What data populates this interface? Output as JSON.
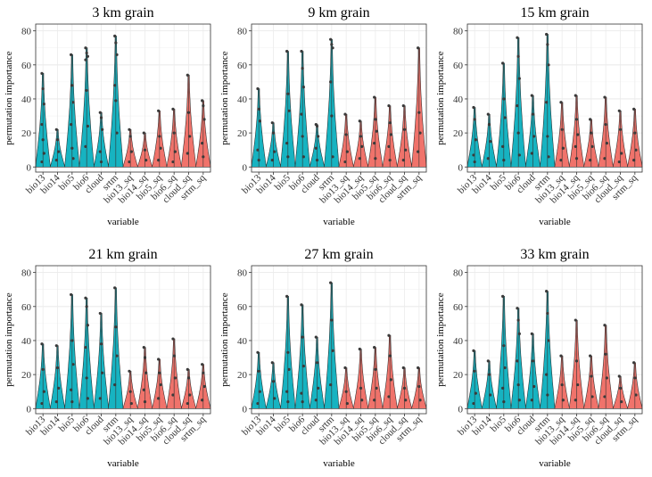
{
  "figure": {
    "xlabel": "variable",
    "ylabel": "permutation importance",
    "y_ticks": [
      0,
      20,
      40,
      60,
      80
    ],
    "ylim": [
      -3,
      84
    ],
    "categories": [
      "bio13",
      "bio14",
      "bio5",
      "bio6",
      "cloud",
      "srtm",
      "bio13_sq",
      "bio14_sq",
      "bio5_sq",
      "bio6_sq",
      "cloud_sq",
      "srtm_sq"
    ],
    "colors": {
      "linear": "#17b3c1",
      "squared": "#f0736b"
    }
  },
  "chart_data": [
    {
      "type": "violin",
      "title": "3 km grain",
      "xlabel": "variable",
      "ylabel": "permutation importance",
      "ylim": [
        -3,
        84
      ],
      "series": [
        {
          "name": "bio13",
          "group": "linear",
          "max": 55,
          "points": [
            55,
            46,
            37,
            25,
            16,
            8,
            3
          ]
        },
        {
          "name": "bio14",
          "group": "linear",
          "max": 22,
          "points": [
            22,
            16,
            9,
            4
          ]
        },
        {
          "name": "bio5",
          "group": "linear",
          "max": 66,
          "points": [
            66,
            48,
            38,
            25,
            11,
            5
          ]
        },
        {
          "name": "bio6",
          "group": "linear",
          "max": 70,
          "points": [
            70,
            67,
            65,
            63,
            45,
            24,
            12
          ]
        },
        {
          "name": "cloud",
          "group": "linear",
          "max": 32,
          "points": [
            32,
            29,
            22,
            9,
            3
          ]
        },
        {
          "name": "srtm",
          "group": "linear",
          "max": 77,
          "points": [
            77,
            73,
            66,
            48,
            39,
            20
          ]
        },
        {
          "name": "bio13_sq",
          "group": "squared",
          "max": 22,
          "points": [
            22,
            18,
            9,
            3
          ]
        },
        {
          "name": "bio14_sq",
          "group": "squared",
          "max": 20,
          "points": [
            20,
            10,
            4
          ]
        },
        {
          "name": "bio5_sq",
          "group": "squared",
          "max": 33,
          "points": [
            33,
            18,
            11,
            4
          ]
        },
        {
          "name": "bio6_sq",
          "group": "squared",
          "max": 34,
          "points": [
            34,
            20,
            9,
            3
          ]
        },
        {
          "name": "cloud_sq",
          "group": "squared",
          "max": 54,
          "points": [
            54,
            32,
            18,
            8
          ]
        },
        {
          "name": "srtm_sq",
          "group": "squared",
          "max": 39,
          "points": [
            39,
            36,
            28,
            14,
            6
          ]
        }
      ]
    },
    {
      "type": "violin",
      "title": "9 km grain",
      "xlabel": "variable",
      "ylabel": "permutation importance",
      "ylim": [
        -3,
        84
      ],
      "series": [
        {
          "name": "bio13",
          "group": "linear",
          "max": 46,
          "points": [
            46,
            34,
            27,
            10,
            4
          ]
        },
        {
          "name": "bio14",
          "group": "linear",
          "max": 26,
          "points": [
            26,
            20,
            9,
            4
          ]
        },
        {
          "name": "bio5",
          "group": "linear",
          "max": 68,
          "points": [
            68,
            43,
            33,
            14,
            6
          ]
        },
        {
          "name": "bio6",
          "group": "linear",
          "max": 68,
          "points": [
            68,
            58,
            47,
            31,
            18,
            6
          ]
        },
        {
          "name": "cloud",
          "group": "linear",
          "max": 25,
          "points": [
            25,
            24,
            18,
            11,
            4
          ]
        },
        {
          "name": "srtm",
          "group": "linear",
          "max": 75,
          "points": [
            75,
            72,
            70,
            50,
            30,
            6
          ]
        },
        {
          "name": "bio13_sq",
          "group": "squared",
          "max": 31,
          "points": [
            31,
            19,
            9,
            3
          ]
        },
        {
          "name": "bio14_sq",
          "group": "squared",
          "max": 27,
          "points": [
            27,
            18,
            12,
            5
          ]
        },
        {
          "name": "bio5_sq",
          "group": "squared",
          "max": 41,
          "points": [
            41,
            28,
            21,
            14,
            5
          ]
        },
        {
          "name": "bio6_sq",
          "group": "squared",
          "max": 36,
          "points": [
            36,
            26,
            19,
            12,
            4
          ]
        },
        {
          "name": "cloud_sq",
          "group": "squared",
          "max": 36,
          "points": [
            36,
            22,
            10,
            4
          ]
        },
        {
          "name": "srtm_sq",
          "group": "squared",
          "max": 70,
          "points": [
            70,
            32,
            20,
            9
          ]
        }
      ]
    },
    {
      "type": "violin",
      "title": "15 km grain",
      "xlabel": "variable",
      "ylabel": "permutation importance",
      "ylim": [
        -3,
        84
      ],
      "series": [
        {
          "name": "bio13",
          "group": "linear",
          "max": 35,
          "points": [
            35,
            28,
            16,
            7,
            3
          ]
        },
        {
          "name": "bio14",
          "group": "linear",
          "max": 31,
          "points": [
            31,
            25,
            15,
            5
          ]
        },
        {
          "name": "bio5",
          "group": "linear",
          "max": 61,
          "points": [
            61,
            40,
            29,
            12,
            4
          ]
        },
        {
          "name": "bio6",
          "group": "linear",
          "max": 76,
          "points": [
            76,
            65,
            52,
            36,
            20,
            7
          ]
        },
        {
          "name": "cloud",
          "group": "linear",
          "max": 42,
          "points": [
            42,
            31,
            18,
            8
          ]
        },
        {
          "name": "srtm",
          "group": "linear",
          "max": 78,
          "points": [
            78,
            72,
            60,
            38,
            18,
            6
          ]
        },
        {
          "name": "bio13_sq",
          "group": "squared",
          "max": 38,
          "points": [
            38,
            22,
            11,
            4
          ]
        },
        {
          "name": "bio14_sq",
          "group": "squared",
          "max": 42,
          "points": [
            42,
            28,
            19,
            12,
            5
          ]
        },
        {
          "name": "bio5_sq",
          "group": "squared",
          "max": 28,
          "points": [
            28,
            20,
            12,
            4
          ]
        },
        {
          "name": "bio6_sq",
          "group": "squared",
          "max": 41,
          "points": [
            41,
            25,
            14,
            5
          ]
        },
        {
          "name": "cloud_sq",
          "group": "squared",
          "max": 33,
          "points": [
            33,
            22,
            8,
            3
          ]
        },
        {
          "name": "srtm_sq",
          "group": "squared",
          "max": 34,
          "points": [
            34,
            20,
            10,
            4
          ]
        }
      ]
    },
    {
      "type": "violin",
      "title": "21 km grain",
      "xlabel": "variable",
      "ylabel": "permutation importance",
      "ylim": [
        -3,
        84
      ],
      "series": [
        {
          "name": "bio13",
          "group": "linear",
          "max": 38,
          "points": [
            38,
            23,
            10,
            3
          ]
        },
        {
          "name": "bio14",
          "group": "linear",
          "max": 37,
          "points": [
            37,
            24,
            12,
            4
          ]
        },
        {
          "name": "bio5",
          "group": "linear",
          "max": 67,
          "points": [
            67,
            40,
            26,
            11,
            4
          ]
        },
        {
          "name": "bio6",
          "group": "linear",
          "max": 65,
          "points": [
            65,
            60,
            49,
            36,
            18,
            6
          ]
        },
        {
          "name": "cloud",
          "group": "linear",
          "max": 56,
          "points": [
            56,
            38,
            21,
            6
          ]
        },
        {
          "name": "srtm",
          "group": "linear",
          "max": 71,
          "points": [
            71,
            48,
            31,
            14
          ]
        },
        {
          "name": "bio13_sq",
          "group": "squared",
          "max": 22,
          "points": [
            22,
            10,
            3
          ]
        },
        {
          "name": "bio14_sq",
          "group": "squared",
          "max": 36,
          "points": [
            36,
            30,
            21,
            11,
            4
          ]
        },
        {
          "name": "bio5_sq",
          "group": "squared",
          "max": 29,
          "points": [
            29,
            21,
            14,
            6
          ]
        },
        {
          "name": "bio6_sq",
          "group": "squared",
          "max": 41,
          "points": [
            41,
            31,
            18,
            8
          ]
        },
        {
          "name": "cloud_sq",
          "group": "squared",
          "max": 23,
          "points": [
            23,
            18,
            8,
            3
          ]
        },
        {
          "name": "srtm_sq",
          "group": "squared",
          "max": 26,
          "points": [
            26,
            21,
            13,
            5
          ]
        }
      ]
    },
    {
      "type": "violin",
      "title": "27 km grain",
      "xlabel": "variable",
      "ylabel": "permutation importance",
      "ylim": [
        -3,
        84
      ],
      "series": [
        {
          "name": "bio13",
          "group": "linear",
          "max": 33,
          "points": [
            33,
            22,
            10,
            3
          ]
        },
        {
          "name": "bio14",
          "group": "linear",
          "max": 27,
          "points": [
            27,
            16,
            6
          ]
        },
        {
          "name": "bio5",
          "group": "linear",
          "max": 66,
          "points": [
            66,
            33,
            23,
            10,
            4
          ]
        },
        {
          "name": "bio6",
          "group": "linear",
          "max": 61,
          "points": [
            61,
            42,
            25,
            9,
            4
          ]
        },
        {
          "name": "cloud",
          "group": "linear",
          "max": 42,
          "points": [
            42,
            27,
            12,
            5
          ]
        },
        {
          "name": "srtm",
          "group": "linear",
          "max": 74,
          "points": [
            74,
            52,
            34,
            14
          ]
        },
        {
          "name": "bio13_sq",
          "group": "squared",
          "max": 24,
          "points": [
            24,
            10,
            3
          ]
        },
        {
          "name": "bio14_sq",
          "group": "squared",
          "max": 35,
          "points": [
            35,
            12,
            5
          ]
        },
        {
          "name": "bio5_sq",
          "group": "squared",
          "max": 36,
          "points": [
            36,
            23,
            12,
            5
          ]
        },
        {
          "name": "bio6_sq",
          "group": "squared",
          "max": 43,
          "points": [
            43,
            31,
            17,
            7
          ]
        },
        {
          "name": "cloud_sq",
          "group": "squared",
          "max": 24,
          "points": [
            24,
            12,
            5
          ]
        },
        {
          "name": "srtm_sq",
          "group": "squared",
          "max": 24,
          "points": [
            24,
            13,
            5
          ]
        }
      ]
    },
    {
      "type": "violin",
      "title": "33 km grain",
      "xlabel": "variable",
      "ylabel": "permutation importance",
      "ylim": [
        -3,
        84
      ],
      "series": [
        {
          "name": "bio13",
          "group": "linear",
          "max": 34,
          "points": [
            34,
            22,
            9,
            3
          ]
        },
        {
          "name": "bio14",
          "group": "linear",
          "max": 28,
          "points": [
            28,
            20,
            8
          ]
        },
        {
          "name": "bio5",
          "group": "linear",
          "max": 66,
          "points": [
            66,
            37,
            24,
            12,
            4
          ]
        },
        {
          "name": "bio6",
          "group": "linear",
          "max": 59,
          "points": [
            59,
            52,
            44,
            28,
            14,
            5
          ]
        },
        {
          "name": "cloud",
          "group": "linear",
          "max": 44,
          "points": [
            44,
            28,
            13,
            5
          ]
        },
        {
          "name": "srtm",
          "group": "linear",
          "max": 69,
          "points": [
            69,
            56,
            40,
            20,
            8
          ]
        },
        {
          "name": "bio13_sq",
          "group": "squared",
          "max": 31,
          "points": [
            31,
            14,
            5
          ]
        },
        {
          "name": "bio14_sq",
          "group": "squared",
          "max": 52,
          "points": [
            52,
            28,
            14,
            5
          ]
        },
        {
          "name": "bio5_sq",
          "group": "squared",
          "max": 31,
          "points": [
            31,
            19,
            7
          ]
        },
        {
          "name": "bio6_sq",
          "group": "squared",
          "max": 49,
          "points": [
            49,
            32,
            18,
            7
          ]
        },
        {
          "name": "cloud_sq",
          "group": "squared",
          "max": 19,
          "points": [
            19,
            12,
            4
          ]
        },
        {
          "name": "srtm_sq",
          "group": "squared",
          "max": 27,
          "points": [
            27,
            18,
            8
          ]
        }
      ]
    }
  ]
}
